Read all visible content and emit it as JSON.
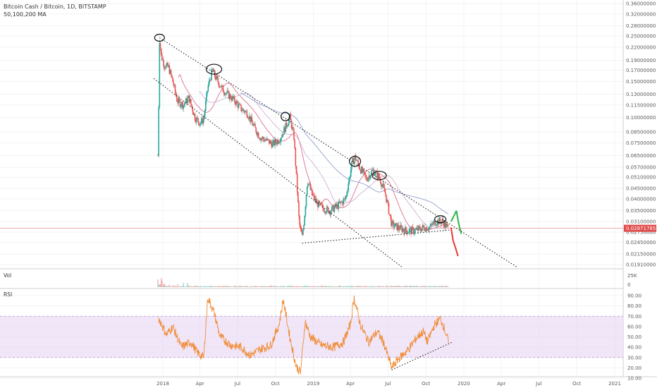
{
  "header": {
    "title": "Bitcoin Cash / Bitcoin, 1D, BITSTAMP",
    "subtitle": "50,100,200 MA"
  },
  "chart_data": [
    {
      "type": "candlestick",
      "panel": "price",
      "title": "Bitcoin Cash / Bitcoin, 1D, BITSTAMP",
      "subtitle": "50,100,200 MA",
      "y_axis_labels": [
        "0.36000000",
        "0.32000000",
        "0.28000000",
        "0.25000000",
        "0.22000000",
        "0.19000000",
        "0.17000000",
        "0.15000000",
        "0.13000000",
        "0.11500000",
        "0.10000000",
        "0.08500000",
        "0.07500000",
        "0.06500000",
        "0.05700000",
        "0.05100000",
        "0.04500000",
        "0.04000000",
        "0.03500000",
        "0.03100000",
        "0.02750000",
        "0.02450000",
        "0.02150000",
        "0.01910000"
      ],
      "last_price_label": "0.02871785",
      "y_scale": "log",
      "x_axis_labels": [
        "2018",
        "Apr",
        "Jul",
        "Oct",
        "2019",
        "Apr",
        "Jul",
        "Oct",
        "2020",
        "Apr",
        "Jul",
        "Oct",
        "2021"
      ],
      "price_series": [
        [
          "2017-12-20",
          0.065
        ],
        [
          "2017-12-22",
          0.115
        ],
        [
          "2017-12-24",
          0.24
        ],
        [
          "2017-12-28",
          0.2
        ],
        [
          "2018-01-05",
          0.18
        ],
        [
          "2018-01-15",
          0.175
        ],
        [
          "2018-01-25",
          0.15
        ],
        [
          "2018-02-05",
          0.12
        ],
        [
          "2018-02-20",
          0.115
        ],
        [
          "2018-03-05",
          0.125
        ],
        [
          "2018-03-20",
          0.1
        ],
        [
          "2018-04-01",
          0.094
        ],
        [
          "2018-04-10",
          0.098
        ],
        [
          "2018-04-20",
          0.14
        ],
        [
          "2018-05-01",
          0.17
        ],
        [
          "2018-05-10",
          0.155
        ],
        [
          "2018-05-25",
          0.138
        ],
        [
          "2018-06-10",
          0.128
        ],
        [
          "2018-06-25",
          0.12
        ],
        [
          "2018-07-10",
          0.11
        ],
        [
          "2018-07-25",
          0.105
        ],
        [
          "2018-08-10",
          0.09
        ],
        [
          "2018-08-25",
          0.08
        ],
        [
          "2018-09-10",
          0.077
        ],
        [
          "2018-09-25",
          0.074
        ],
        [
          "2018-10-10",
          0.078
        ],
        [
          "2018-10-20",
          0.085
        ],
        [
          "2018-11-05",
          0.1
        ],
        [
          "2018-11-15",
          0.08
        ],
        [
          "2018-11-20",
          0.055
        ],
        [
          "2018-11-28",
          0.03
        ],
        [
          "2018-12-05",
          0.026
        ],
        [
          "2018-12-10",
          0.032
        ],
        [
          "2018-12-18",
          0.05
        ],
        [
          "2018-12-28",
          0.042
        ],
        [
          "2019-01-10",
          0.038
        ],
        [
          "2019-01-25",
          0.036
        ],
        [
          "2019-02-10",
          0.035
        ],
        [
          "2019-03-01",
          0.037
        ],
        [
          "2019-03-20",
          0.04
        ],
        [
          "2019-04-05",
          0.06
        ],
        [
          "2019-04-12",
          0.064
        ],
        [
          "2019-04-25",
          0.056
        ],
        [
          "2019-05-10",
          0.05
        ],
        [
          "2019-05-25",
          0.055
        ],
        [
          "2019-06-10",
          0.051
        ],
        [
          "2019-06-25",
          0.042
        ],
        [
          "2019-07-10",
          0.03
        ],
        [
          "2019-07-25",
          0.029
        ],
        [
          "2019-08-15",
          0.028
        ],
        [
          "2019-09-05",
          0.028
        ],
        [
          "2019-09-25",
          0.029
        ],
        [
          "2019-10-10",
          0.029
        ],
        [
          "2019-10-25",
          0.031
        ],
        [
          "2019-11-10",
          0.031
        ],
        [
          "2019-11-25",
          0.0287
        ]
      ],
      "projection_green": [
        [
          "2019-12-01",
          0.031
        ],
        [
          "2019-12-08",
          0.033
        ],
        [
          "2019-12-14",
          0.035
        ],
        [
          "2019-12-20",
          0.03
        ],
        [
          "2019-12-26",
          0.027
        ]
      ],
      "projection_red": [
        [
          "2019-12-01",
          0.029
        ],
        [
          "2019-12-06",
          0.025
        ],
        [
          "2019-12-12",
          0.023
        ],
        [
          "2019-12-18",
          0.021
        ]
      ],
      "resistance_line": [
        [
          "2017-12-24",
          0.245
        ],
        [
          "2020-05-10",
          0.0185
        ]
      ],
      "channel_support_line": [
        [
          "2017-12-10",
          0.155
        ],
        [
          "2019-08-05",
          0.0185
        ]
      ],
      "base_support_line": [
        [
          "2018-12-05",
          0.0243
        ],
        [
          "2019-12-01",
          0.0282
        ]
      ],
      "highlighted_peaks": [
        [
          "2017-12-24",
          0.245
        ],
        [
          "2018-05-05",
          0.172
        ],
        [
          "2018-10-25",
          0.101
        ],
        [
          "2019-04-12",
          0.061
        ],
        [
          "2019-06-10",
          0.052
        ],
        [
          "2019-11-05",
          0.0318
        ]
      ],
      "price_line_color": "#d84343",
      "up_color": "#26a69a",
      "down_color": "#ef5350"
    },
    {
      "type": "bar",
      "panel": "volume",
      "title": "Vol",
      "y_axis_labels": [
        "25K",
        "0"
      ]
    },
    {
      "type": "line",
      "panel": "rsi",
      "title": "RSI",
      "y_axis_labels": [
        "90.00",
        "80.00",
        "70.00",
        "60.00",
        "50.00",
        "40.00",
        "30.00",
        "20.00",
        "10.00"
      ],
      "overbought": 70,
      "oversold": 30,
      "band_color": "#e9d7f5",
      "line_color": "#f08b34",
      "rsi_series": [
        [
          "2017-12-22",
          68
        ],
        [
          "2018-01-10",
          52
        ],
        [
          "2018-01-25",
          60
        ],
        [
          "2018-02-15",
          40
        ],
        [
          "2018-03-10",
          45
        ],
        [
          "2018-03-25",
          35
        ],
        [
          "2018-04-10",
          30
        ],
        [
          "2018-04-20",
          88
        ],
        [
          "2018-05-05",
          74
        ],
        [
          "2018-05-20",
          50
        ],
        [
          "2018-06-15",
          42
        ],
        [
          "2018-07-10",
          40
        ],
        [
          "2018-08-01",
          32
        ],
        [
          "2018-08-25",
          38
        ],
        [
          "2018-09-20",
          42
        ],
        [
          "2018-10-10",
          62
        ],
        [
          "2018-10-20",
          86
        ],
        [
          "2018-11-05",
          50
        ],
        [
          "2018-11-20",
          22
        ],
        [
          "2018-12-01",
          15
        ],
        [
          "2018-12-12",
          65
        ],
        [
          "2018-12-25",
          50
        ],
        [
          "2019-01-20",
          42
        ],
        [
          "2019-02-20",
          40
        ],
        [
          "2019-03-15",
          45
        ],
        [
          "2019-04-01",
          62
        ],
        [
          "2019-04-10",
          88
        ],
        [
          "2019-04-25",
          62
        ],
        [
          "2019-05-15",
          45
        ],
        [
          "2019-06-05",
          55
        ],
        [
          "2019-06-20",
          45
        ],
        [
          "2019-07-10",
          20
        ],
        [
          "2019-07-25",
          28
        ],
        [
          "2019-08-20",
          38
        ],
        [
          "2019-09-10",
          50
        ],
        [
          "2019-09-25",
          55
        ],
        [
          "2019-10-05",
          45
        ],
        [
          "2019-10-20",
          60
        ],
        [
          "2019-11-05",
          68
        ],
        [
          "2019-11-15",
          58
        ],
        [
          "2019-11-25",
          45
        ]
      ],
      "trend_line": [
        [
          "2019-07-10",
          18
        ],
        [
          "2019-12-05",
          45
        ]
      ]
    }
  ]
}
